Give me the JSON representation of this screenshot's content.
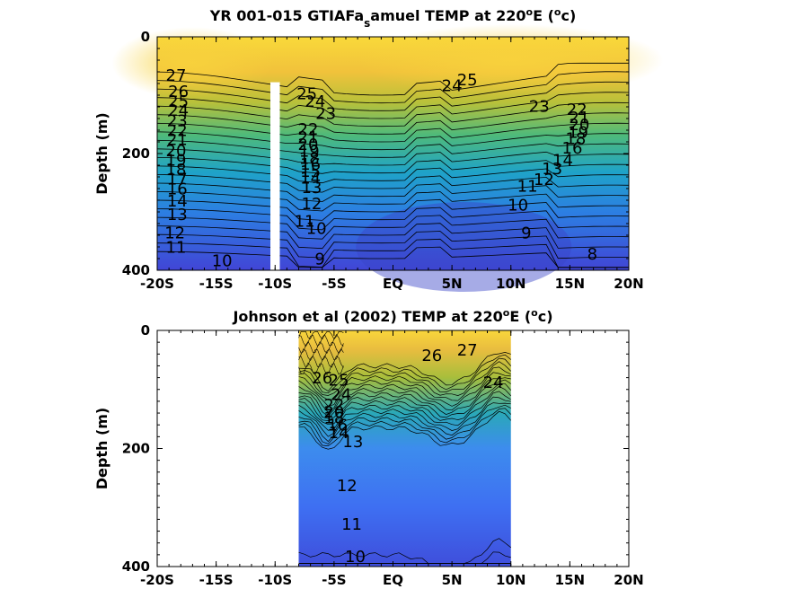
{
  "chart_data": [
    {
      "type": "contour",
      "title": {
        "main": "YR 001-015 GTIAFa",
        "sub": "s",
        "rest": "amuel TEMP at 220",
        "deg": "o",
        "unit_pre": "E (",
        "unit_sup": "o",
        "unit_post": "c)"
      },
      "ylabel": "Depth (m)",
      "xlim": [
        -20,
        20
      ],
      "ylim": [
        0,
        400
      ],
      "y_inverted": true,
      "x_ticks": [
        "-20S",
        "-15S",
        "-10S",
        "-5S",
        "EQ",
        "5N",
        "10N",
        "15N",
        "20N"
      ],
      "y_ticks": [
        "0",
        "200",
        "400"
      ],
      "colormap": "parula",
      "contour_labels": [
        {
          "t": "27",
          "x": -18.4,
          "y": 68
        },
        {
          "t": "26",
          "x": -18.2,
          "y": 95
        },
        {
          "t": "25",
          "x": -18.2,
          "y": 112
        },
        {
          "t": "24",
          "x": -18.2,
          "y": 128
        },
        {
          "t": "23",
          "x": -18.3,
          "y": 145
        },
        {
          "t": "22",
          "x": -18.3,
          "y": 162
        },
        {
          "t": "21",
          "x": -18.3,
          "y": 178
        },
        {
          "t": "20",
          "x": -18.4,
          "y": 197
        },
        {
          "t": "19",
          "x": -18.4,
          "y": 213
        },
        {
          "t": "18",
          "x": -18.4,
          "y": 229
        },
        {
          "t": "17",
          "x": -18.3,
          "y": 245
        },
        {
          "t": "16",
          "x": -18.3,
          "y": 262
        },
        {
          "t": "14",
          "x": -18.3,
          "y": 283
        },
        {
          "t": "13",
          "x": -18.3,
          "y": 306
        },
        {
          "t": "12",
          "x": -18.5,
          "y": 338
        },
        {
          "t": "11",
          "x": -18.4,
          "y": 362
        },
        {
          "t": "10",
          "x": -14.5,
          "y": 385
        },
        {
          "t": "25",
          "x": -7.3,
          "y": 99
        },
        {
          "t": "24",
          "x": -6.6,
          "y": 112
        },
        {
          "t": "23",
          "x": -5.7,
          "y": 133
        },
        {
          "t": "22",
          "x": -7.2,
          "y": 160
        },
        {
          "t": "21",
          "x": -7.2,
          "y": 174
        },
        {
          "t": "20",
          "x": -7.2,
          "y": 186
        },
        {
          "t": "19",
          "x": -7.1,
          "y": 198
        },
        {
          "t": "18",
          "x": -7.1,
          "y": 210
        },
        {
          "t": "16",
          "x": -7.0,
          "y": 220
        },
        {
          "t": "15",
          "x": -7.0,
          "y": 232
        },
        {
          "t": "14",
          "x": -7.0,
          "y": 244
        },
        {
          "t": "13",
          "x": -6.9,
          "y": 260
        },
        {
          "t": "12",
          "x": -6.9,
          "y": 288
        },
        {
          "t": "11",
          "x": -7.5,
          "y": 318
        },
        {
          "t": "10",
          "x": -6.5,
          "y": 330
        },
        {
          "t": "9",
          "x": -6.2,
          "y": 382
        },
        {
          "t": "24",
          "x": 5.0,
          "y": 85
        },
        {
          "t": "25",
          "x": 6.3,
          "y": 75
        },
        {
          "t": "23",
          "x": 12.4,
          "y": 121
        },
        {
          "t": "22",
          "x": 15.6,
          "y": 126
        },
        {
          "t": "21",
          "x": 15.8,
          "y": 140
        },
        {
          "t": "20",
          "x": 15.8,
          "y": 152
        },
        {
          "t": "19",
          "x": 15.7,
          "y": 165
        },
        {
          "t": "18",
          "x": 15.5,
          "y": 176
        },
        {
          "t": "16",
          "x": 15.2,
          "y": 192
        },
        {
          "t": "14",
          "x": 14.4,
          "y": 213
        },
        {
          "t": "13",
          "x": 13.5,
          "y": 228
        },
        {
          "t": "12",
          "x": 12.8,
          "y": 246
        },
        {
          "t": "11",
          "x": 11.4,
          "y": 258
        },
        {
          "t": "10",
          "x": 10.6,
          "y": 290
        },
        {
          "t": "9",
          "x": 11.3,
          "y": 338
        },
        {
          "t": "8",
          "x": 16.9,
          "y": 374
        }
      ]
    },
    {
      "type": "contour",
      "title": {
        "main": "Johnson et al (2002) TEMP at 220",
        "deg": "o",
        "unit_pre": "E (",
        "unit_sup": "o",
        "unit_post": "c)"
      },
      "ylabel": "Depth (m)",
      "xlim": [
        -20,
        20
      ],
      "ylim": [
        0,
        400
      ],
      "y_inverted": true,
      "x_ticks": [
        "-20S",
        "-15S",
        "-10S",
        "-5S",
        "EQ",
        "5N",
        "10N",
        "15N",
        "20N"
      ],
      "y_ticks": [
        "0",
        "200",
        "400"
      ],
      "data_xrange": [
        -8,
        10
      ],
      "colormap": "parula",
      "contour_labels": [
        {
          "t": "26",
          "x": -6.0,
          "y": 82
        },
        {
          "t": "25",
          "x": -4.6,
          "y": 86
        },
        {
          "t": "27",
          "x": 6.3,
          "y": 35
        },
        {
          "t": "26",
          "x": 3.3,
          "y": 44
        },
        {
          "t": "24",
          "x": -4.4,
          "y": 110
        },
        {
          "t": "22",
          "x": -5.0,
          "y": 128
        },
        {
          "t": "20",
          "x": -5.0,
          "y": 140
        },
        {
          "t": "18",
          "x": -5.0,
          "y": 150
        },
        {
          "t": "16",
          "x": -4.7,
          "y": 162
        },
        {
          "t": "14",
          "x": -4.6,
          "y": 175
        },
        {
          "t": "13",
          "x": -3.4,
          "y": 190
        },
        {
          "t": "12",
          "x": -3.9,
          "y": 265
        },
        {
          "t": "11",
          "x": -3.5,
          "y": 330
        },
        {
          "t": "10",
          "x": -3.2,
          "y": 385
        },
        {
          "t": "24",
          "x": 8.5,
          "y": 90
        }
      ]
    }
  ]
}
